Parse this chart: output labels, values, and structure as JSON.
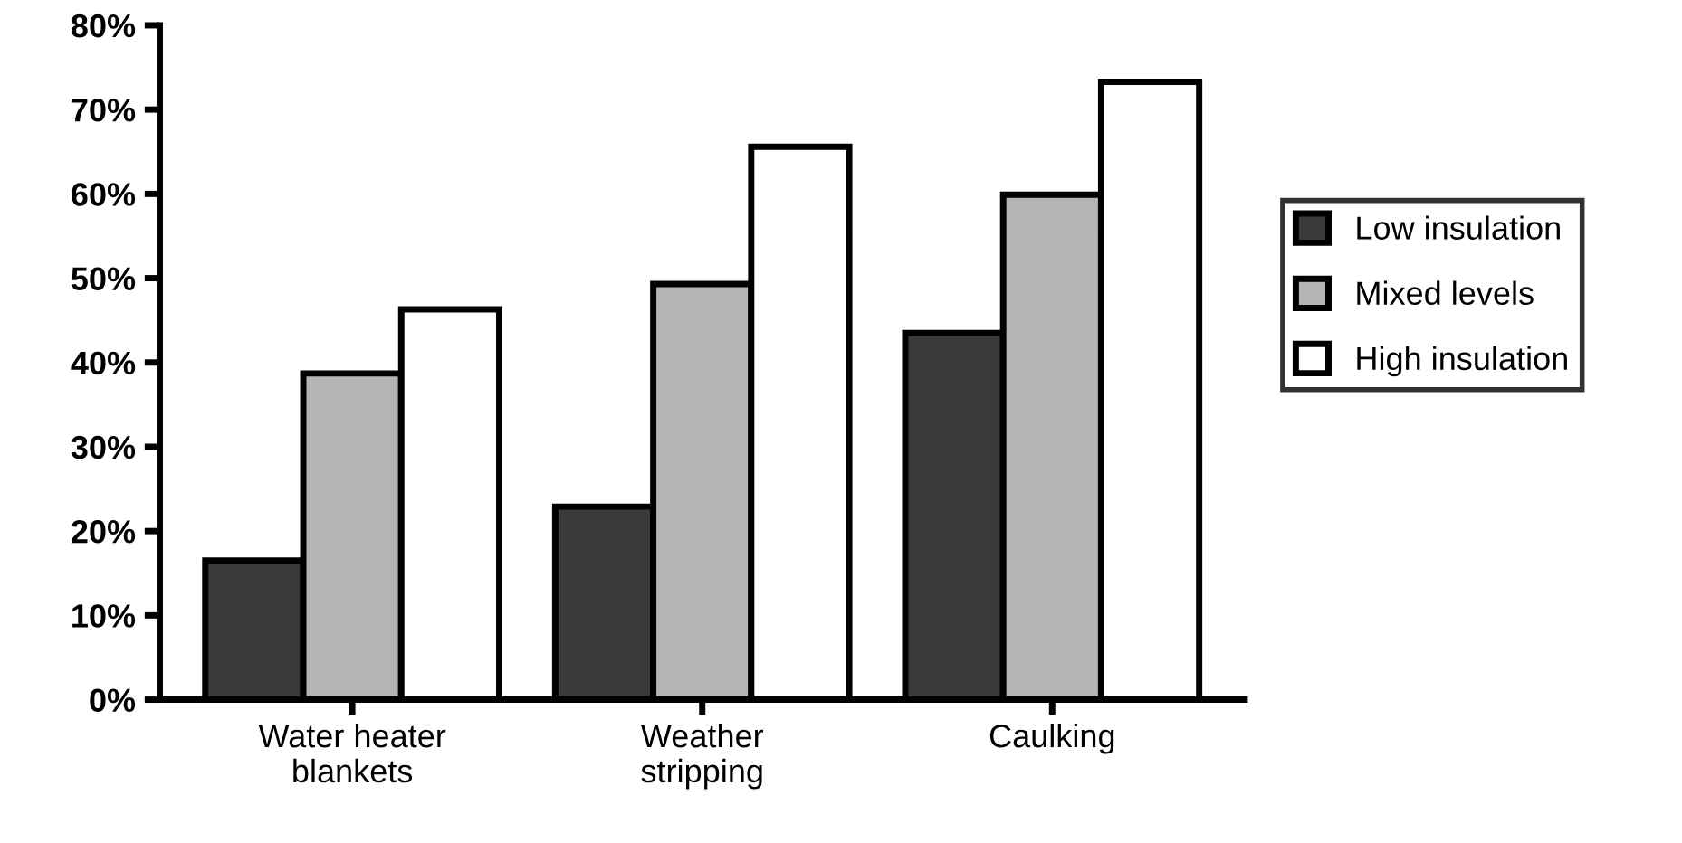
{
  "chart_data": {
    "type": "bar",
    "categories": [
      "Water heater\nblankets",
      "Weather\nstripping",
      "Caulking"
    ],
    "series": [
      {
        "name": "Low insulation",
        "color": "#3a3a3a",
        "values": [
          16.5,
          22.9,
          43.5
        ]
      },
      {
        "name": "Mixed levels",
        "color": "#b4b4b4",
        "values": [
          38.7,
          49.3,
          59.9
        ]
      },
      {
        "name": "High insulation",
        "color": "#ffffff",
        "values": [
          46.3,
          65.6,
          73.3
        ]
      }
    ],
    "ylim": [
      0,
      80
    ],
    "yticks": [
      {
        "value": 0,
        "label": "0%"
      },
      {
        "value": 10,
        "label": "10%"
      },
      {
        "value": 20,
        "label": "20%"
      },
      {
        "value": 30,
        "label": "30%"
      },
      {
        "value": 40,
        "label": "40%"
      },
      {
        "value": 50,
        "label": "50%"
      },
      {
        "value": 60,
        "label": "60%"
      },
      {
        "value": 70,
        "label": "70%"
      },
      {
        "value": 80,
        "label": "80%"
      }
    ],
    "legend": "right",
    "grid": false
  }
}
